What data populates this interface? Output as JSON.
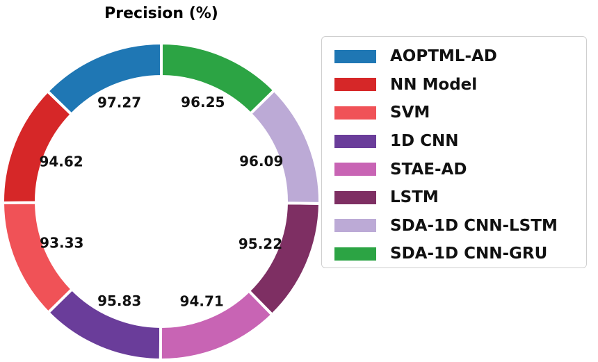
{
  "chart_data": {
    "type": "pie",
    "style": "donut",
    "title": "Precision (%)",
    "categories": [
      "AOPTML-AD",
      "NN Model",
      "SVM",
      "1D CNN",
      "STAE-AD",
      "LSTM",
      "SDA-1D CNN-LSTM",
      "SDA-1D CNN-GRU"
    ],
    "values": [
      97.27,
      94.62,
      93.33,
      95.83,
      94.71,
      95.22,
      96.09,
      96.25
    ],
    "labels": [
      "97.27",
      "94.62",
      "93.33",
      "95.83",
      "94.71",
      "95.22",
      "96.09",
      "96.25"
    ],
    "colors": [
      "#1f77b4",
      "#d62728",
      "#f05257",
      "#6a3d9a",
      "#c864b4",
      "#7e2f63",
      "#bcaad6",
      "#2ca444"
    ],
    "start": "top",
    "direction": "counterclockwise",
    "legend_position": "right"
  }
}
